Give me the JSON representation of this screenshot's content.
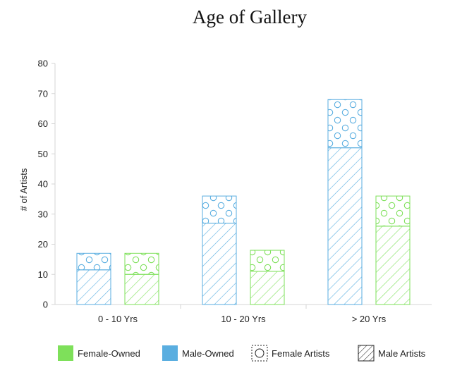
{
  "chart_data": {
    "type": "bar",
    "title": "Age of Gallery",
    "xlabel": "",
    "ylabel": "# of Artists",
    "ylim": [
      0,
      80
    ],
    "yticks": [
      0,
      10,
      20,
      30,
      40,
      50,
      60,
      70,
      80
    ],
    "categories": [
      "0 - 10 Yrs",
      "10 - 20 Yrs",
      "> 20 Yrs"
    ],
    "stacked": true,
    "groups": [
      {
        "name": "Male-Owned",
        "color": "#5aaee0",
        "male_artists": [
          11.5,
          27,
          52
        ],
        "female_artists": [
          5.5,
          9,
          16
        ]
      },
      {
        "name": "Female-Owned",
        "color": "#7ee05a",
        "male_artists": [
          10,
          11,
          26
        ],
        "female_artists": [
          7,
          7,
          10
        ]
      }
    ],
    "legend": [
      {
        "label": "Female-Owned",
        "kind": "swatch",
        "color": "#7ee05a"
      },
      {
        "label": "Male-Owned",
        "kind": "swatch",
        "color": "#5aaee0"
      },
      {
        "label": "Female Artists",
        "kind": "circles"
      },
      {
        "label": "Male Artists",
        "kind": "hatch"
      }
    ],
    "legend_position": "bottom",
    "grid": false
  }
}
